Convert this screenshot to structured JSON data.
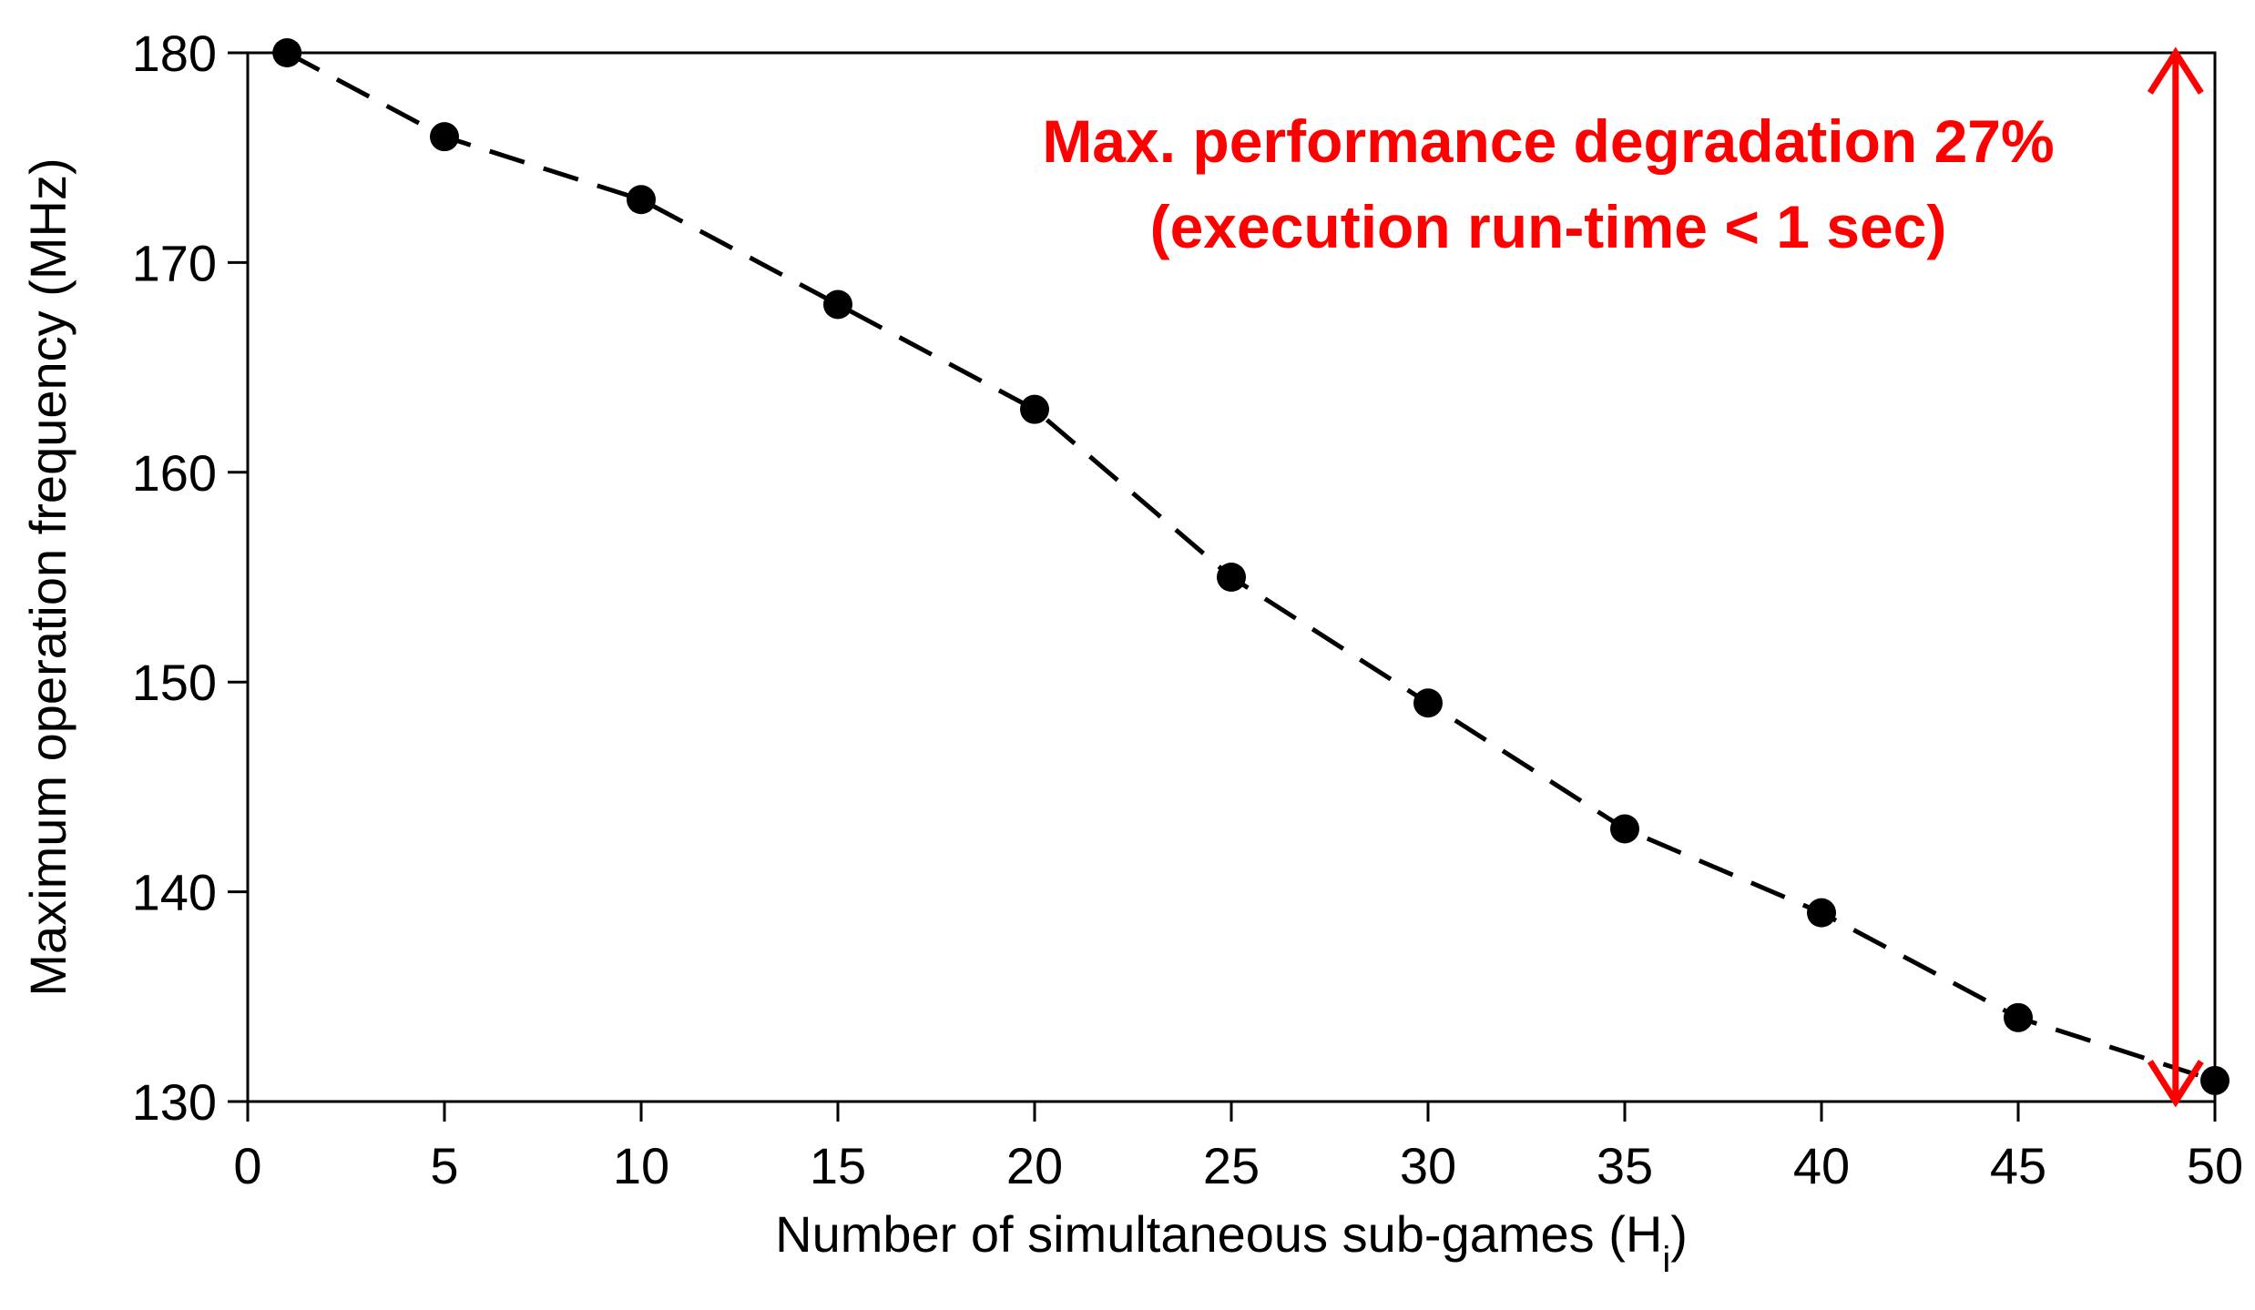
{
  "chart_data": {
    "type": "line",
    "title": "",
    "xlabel": "Number of simultaneous sub-games (H",
    "xlabel_subscript": "i",
    "xlabel_suffix": ")",
    "ylabel": "Maximum operation frequency (MHz)",
    "xlim": [
      0,
      50
    ],
    "ylim": [
      130,
      180
    ],
    "xticks": [
      0,
      5,
      10,
      15,
      20,
      25,
      30,
      35,
      40,
      45,
      50
    ],
    "yticks": [
      130,
      140,
      150,
      160,
      170,
      180
    ],
    "grid": false,
    "series": [
      {
        "name": "Maximum operation frequency",
        "line_style": "dashed",
        "marker": "circle",
        "x": [
          1,
          5,
          10,
          15,
          20,
          25,
          30,
          35,
          40,
          45,
          50
        ],
        "y": [
          180,
          176,
          173,
          168,
          163,
          155,
          149,
          143,
          139,
          134,
          131
        ]
      }
    ],
    "annotations": {
      "line1": "Max. performance degradation 27%",
      "line2": "(execution run-time < 1 sec)",
      "arrow_x": 49,
      "arrow_from": 180,
      "arrow_to": 130
    },
    "colors": {
      "series": "#000000",
      "annotation": "#ff0000",
      "axis": "#000000"
    }
  }
}
